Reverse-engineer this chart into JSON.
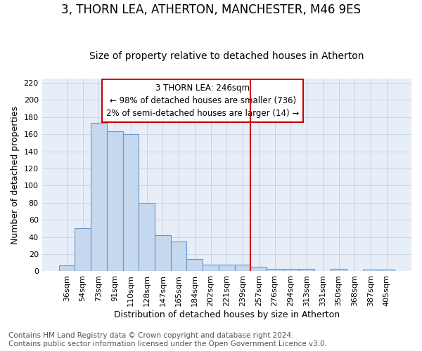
{
  "title": "3, THORN LEA, ATHERTON, MANCHESTER, M46 9ES",
  "subtitle": "Size of property relative to detached houses in Atherton",
  "xlabel": "Distribution of detached houses by size in Atherton",
  "ylabel": "Number of detached properties",
  "categories": [
    "36sqm",
    "54sqm",
    "73sqm",
    "91sqm",
    "110sqm",
    "128sqm",
    "147sqm",
    "165sqm",
    "184sqm",
    "202sqm",
    "221sqm",
    "239sqm",
    "257sqm",
    "276sqm",
    "294sqm",
    "313sqm",
    "331sqm",
    "350sqm",
    "368sqm",
    "387sqm",
    "405sqm"
  ],
  "values": [
    7,
    50,
    173,
    163,
    160,
    80,
    42,
    35,
    14,
    8,
    8,
    8,
    5,
    3,
    3,
    3,
    0,
    3,
    0,
    2,
    2
  ],
  "bar_color": "#c5d8ee",
  "bar_edge_color": "#6699cc",
  "vline_color": "#cc0000",
  "annotation_line1": "3 THORN LEA: 246sqm",
  "annotation_line2": "← 98% of detached houses are smaller (736)",
  "annotation_line3": "2% of semi-detached houses are larger (14) →",
  "ylim": [
    0,
    225
  ],
  "yticks": [
    0,
    20,
    40,
    60,
    80,
    100,
    120,
    140,
    160,
    180,
    200,
    220
  ],
  "grid_color": "#c8d4e8",
  "bg_color": "#e8eef8",
  "footnote": "Contains HM Land Registry data © Crown copyright and database right 2024.\nContains public sector information licensed under the Open Government Licence v3.0.",
  "title_fontsize": 12,
  "subtitle_fontsize": 10,
  "xlabel_fontsize": 9,
  "ylabel_fontsize": 9,
  "tick_fontsize": 8,
  "annotation_fontsize": 8.5,
  "footnote_fontsize": 7.5,
  "vline_index": 12
}
